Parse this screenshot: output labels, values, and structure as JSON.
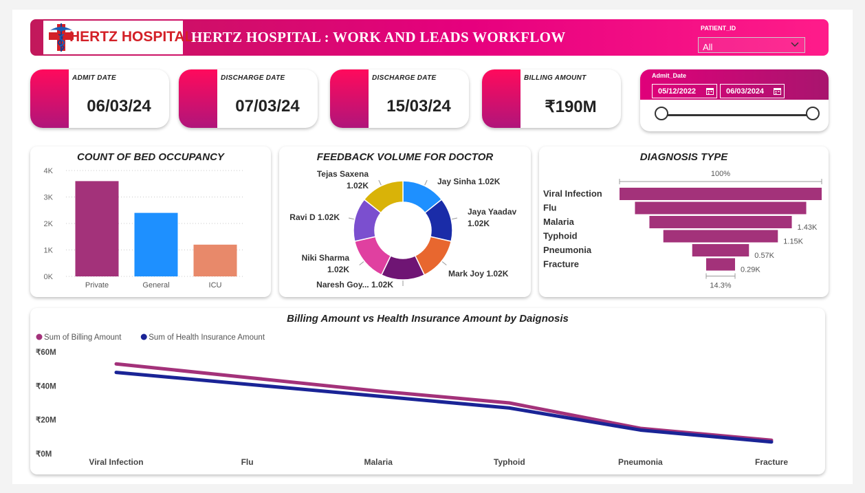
{
  "header": {
    "logo_text": "HERTZ HOSPITAL",
    "title": "HERTZ HOSPITAL : WORK AND LEADS WORKFLOW",
    "patient_id_label": "PATIENT_ID",
    "patient_id_value": "All"
  },
  "kpis": [
    {
      "label": "ADMIT DATE",
      "value": "06/03/24"
    },
    {
      "label": "DISCHARGE DATE",
      "value": "07/03/24"
    },
    {
      "label": "DISCHARGE DATE",
      "value": "15/03/24"
    },
    {
      "label": "BILLING AMOUNT",
      "value": "₹190M"
    }
  ],
  "admit_date_slicer": {
    "label": "Admit_Date",
    "start": "05/12/2022",
    "end": "06/03/2024"
  },
  "colors": {
    "magenta": "#a3327a",
    "navy": "#1a2496",
    "header": "#e6007e"
  },
  "chart_data": [
    {
      "type": "bar",
      "title": "COUNT OF BED OCCUPANCY",
      "categories": [
        "Private",
        "General",
        "ICU"
      ],
      "values": [
        3600,
        2400,
        1200
      ],
      "ylim": [
        0,
        4000
      ],
      "yticks": [
        "0K",
        "1K",
        "2K",
        "3K",
        "4K"
      ],
      "colors": [
        "#a3327a",
        "#1e90ff",
        "#e8896a"
      ],
      "grid": true
    },
    {
      "type": "pie",
      "title": "FEEDBACK VOLUME FOR DOCTOR",
      "slices": [
        {
          "name": "Jay Sinha",
          "value": 1020,
          "label": "1.02K",
          "color": "#1e90ff"
        },
        {
          "name": "Jaya Yaadav",
          "value": 1020,
          "label": "1.02K",
          "color": "#1a2ca8"
        },
        {
          "name": "Mark Joy",
          "value": 1020,
          "label": "1.02K",
          "color": "#e8672f"
        },
        {
          "name": "Naresh Goy...",
          "value": 1020,
          "label": "1.02K",
          "color": "#6f1574"
        },
        {
          "name": "Niki Sharma",
          "value": 1020,
          "label": "1.02K",
          "color": "#e040a0"
        },
        {
          "name": "Ravi D",
          "value": 1020,
          "label": "1.02K",
          "color": "#7b4fcf"
        },
        {
          "name": "Tejas Saxena",
          "value": 1020,
          "label": "1.02K",
          "color": "#d9b308"
        }
      ]
    },
    {
      "type": "funnel",
      "title": "DIAGNOSIS TYPE",
      "categories": [
        "Viral Infection",
        "Flu",
        "Malaria",
        "Typhoid",
        "Pneumonia",
        "Fracture"
      ],
      "values": [
        2030,
        1720,
        1430,
        1150,
        570,
        290
      ],
      "value_labels": [
        "",
        "",
        "1.43K",
        "1.15K",
        "0.57K",
        "0.29K"
      ],
      "top_pct": "100%",
      "bottom_pct": "14.3%",
      "color": "#a3327a"
    },
    {
      "type": "line",
      "title": "Billing Amount vs Health Insurance Amount by Daignosis",
      "categories": [
        "Viral Infection",
        "Flu",
        "Malaria",
        "Typhoid",
        "Pneumonia",
        "Fracture"
      ],
      "series": [
        {
          "name": "Sum of Billing Amount",
          "values": [
            53,
            45,
            37,
            30,
            15,
            8
          ],
          "color": "#a3327a"
        },
        {
          "name": "Sum of Health Insurance Amount",
          "values": [
            48,
            41,
            34,
            27,
            14,
            7
          ],
          "color": "#1a2496"
        }
      ],
      "ylim": [
        0,
        60
      ],
      "yticks": [
        "₹0M",
        "₹20M",
        "₹40M",
        "₹60M"
      ],
      "yunit": "₹M",
      "legend": "top-left"
    }
  ]
}
